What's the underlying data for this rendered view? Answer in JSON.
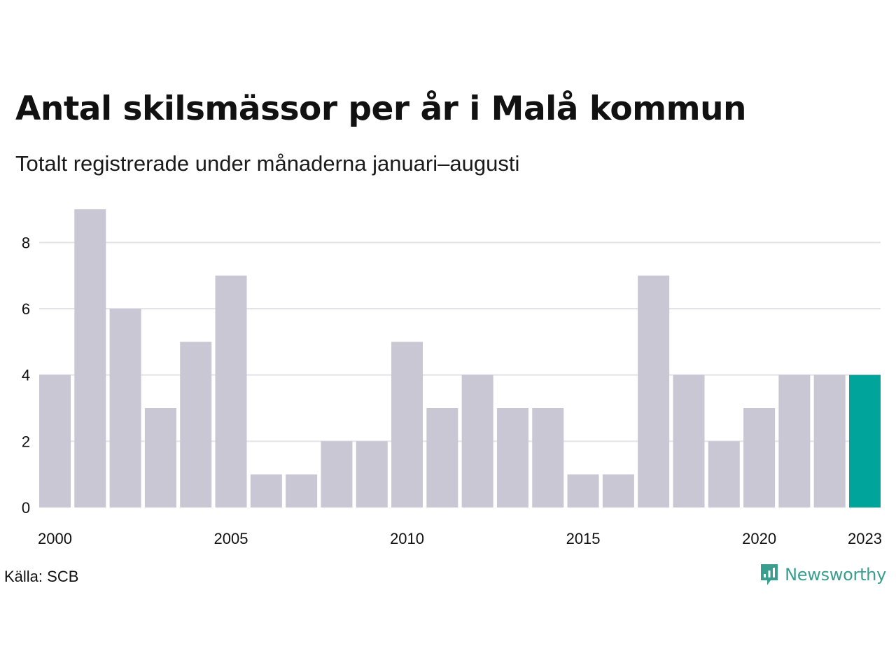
{
  "title": "Antal skilsmässor per år i Malå kommun",
  "subtitle": "Totalt registrerade under månaderna januari–augusti",
  "source": "Källa: SCB",
  "brand": "Newsworthy",
  "colors": {
    "bar": "#c8c7d3",
    "highlight": "#00a49a",
    "grid": "#e3e3e8",
    "text": "#111111",
    "brand": "#3a9e8e"
  },
  "chart_data": {
    "type": "bar",
    "categories": [
      "2000",
      "2001",
      "2002",
      "2003",
      "2004",
      "2005",
      "2006",
      "2007",
      "2008",
      "2009",
      "2010",
      "2011",
      "2012",
      "2013",
      "2014",
      "2015",
      "2016",
      "2017",
      "2018",
      "2019",
      "2020",
      "2021",
      "2022",
      "2023"
    ],
    "values": [
      4,
      9,
      6,
      3,
      5,
      7,
      1,
      1,
      2,
      2,
      5,
      3,
      4,
      3,
      3,
      1,
      1,
      7,
      4,
      2,
      3,
      4,
      4,
      4
    ],
    "highlight": "2023",
    "x_tick_labels": [
      "2000",
      "2005",
      "2010",
      "2015",
      "2020",
      "2023"
    ],
    "y_ticks": [
      0,
      2,
      4,
      6,
      8
    ],
    "ylim": [
      0,
      9
    ],
    "grid": true,
    "xlabel": "",
    "ylabel": ""
  }
}
